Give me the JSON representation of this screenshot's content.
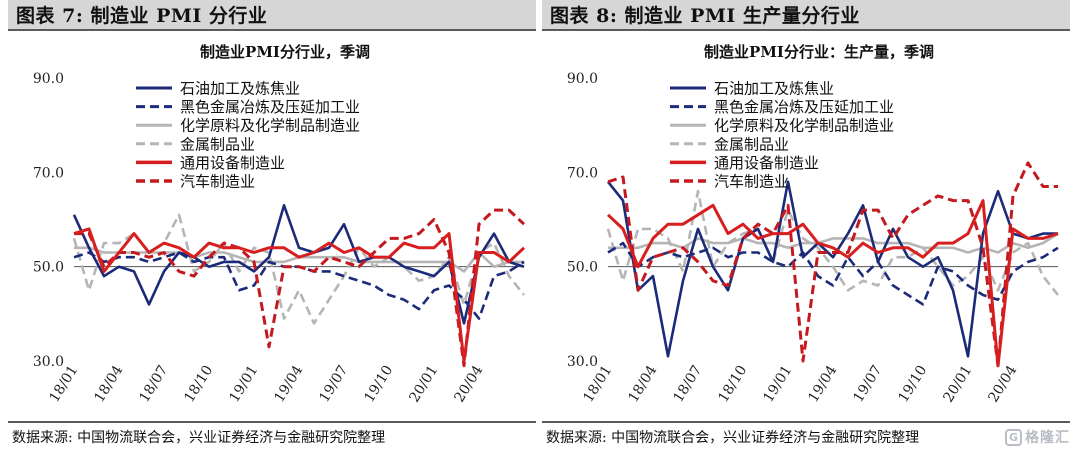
{
  "figures": [
    {
      "header": "图表 7:  制造业 PMI 分行业",
      "source": "数据来源:  中国物流联合会，兴业证券经济与金融研究院整理"
    },
    {
      "header": "图表 8:  制造业 PMI 生产量分行业",
      "source": "数据来源:  中国物流联合会，兴业证券经济与金融研究院整理"
    }
  ],
  "watermark": {
    "icon": "G",
    "text": "格隆汇"
  },
  "chart_data": [
    {
      "type": "line",
      "title": "制造业PMI分行业，季调",
      "ylim": [
        30,
        90
      ],
      "yticks": [
        30,
        50,
        70,
        90
      ],
      "ytick_labels": [
        "30.0",
        "50.0",
        "70.0",
        "90.0"
      ],
      "reference_line": 50,
      "x_count": 31,
      "xticks": [
        {
          "index": 0,
          "label": "18/01"
        },
        {
          "index": 3,
          "label": "18/04"
        },
        {
          "index": 6,
          "label": "18/07"
        },
        {
          "index": 9,
          "label": "18/10"
        },
        {
          "index": 12,
          "label": "19/01"
        },
        {
          "index": 15,
          "label": "19/04"
        },
        {
          "index": 18,
          "label": "19/07"
        },
        {
          "index": 21,
          "label": "19/10"
        },
        {
          "index": 24,
          "label": "20/01"
        },
        {
          "index": 27,
          "label": "20/04"
        }
      ],
      "legend_position": "top-center",
      "grid": false,
      "series": [
        {
          "name": "石油加工及炼焦业",
          "color": "#1b2b7a",
          "dash": "solid",
          "values": [
            61,
            54,
            48,
            50,
            49,
            42,
            49,
            53,
            52,
            50,
            51,
            51,
            49,
            52,
            63,
            54,
            53,
            54,
            59,
            51,
            52,
            52,
            50,
            49,
            48,
            51,
            38,
            52,
            57,
            51,
            50
          ]
        },
        {
          "name": "黑色金属冶炼及压延加工业",
          "color": "#1b2b7a",
          "dash": "dashed",
          "values": [
            52,
            53,
            51,
            52,
            52,
            51,
            52,
            53,
            51,
            52,
            52,
            45,
            46,
            51,
            50,
            50,
            49,
            49,
            48,
            47,
            46,
            44,
            43,
            41,
            45,
            46,
            43,
            39,
            48,
            49,
            51
          ]
        },
        {
          "name": "化学原料及化学制品制造业",
          "color": "#b5b5b5",
          "dash": "solid",
          "values": [
            54,
            54,
            53,
            53,
            53,
            53,
            53,
            53,
            52,
            53,
            53,
            52,
            51,
            51,
            51,
            52,
            52,
            52,
            52,
            51,
            51,
            51,
            51,
            51,
            51,
            51,
            49,
            53,
            50,
            51,
            51
          ]
        },
        {
          "name": "金属制品业",
          "color": "#b5b5b5",
          "dash": "dashed",
          "values": [
            56,
            45,
            55,
            55,
            57,
            53,
            55,
            61,
            49,
            51,
            55,
            49,
            54,
            53,
            39,
            45,
            38,
            43,
            48,
            54,
            50,
            52,
            50,
            47,
            48,
            52,
            42,
            53,
            55,
            48,
            44
          ]
        },
        {
          "name": "通用设备制造业",
          "color": "#d81e1e",
          "dash": "solid",
          "values": [
            57,
            58,
            49,
            53,
            57,
            53,
            55,
            54,
            52,
            55,
            54,
            54,
            53,
            54,
            54,
            52,
            53,
            55,
            53,
            54,
            52,
            52,
            55,
            54,
            54,
            57,
            30,
            53,
            53,
            51,
            54
          ]
        },
        {
          "name": "汽车制造业",
          "color": "#c3191f",
          "dash": "dashed",
          "values": [
            57,
            57,
            50,
            53,
            53,
            52,
            53,
            49,
            48,
            52,
            55,
            54,
            51,
            33,
            50,
            50,
            49,
            52,
            51,
            50,
            53,
            56,
            56,
            57,
            60,
            53,
            29,
            59,
            62,
            62,
            59
          ]
        }
      ]
    },
    {
      "type": "line",
      "title": "制造业PMI分行业：生产量，季调",
      "ylim": [
        30,
        90
      ],
      "yticks": [
        30,
        50,
        70,
        90
      ],
      "ytick_labels": [
        "30.0",
        "50.0",
        "70.0",
        "90.0"
      ],
      "reference_line": 50,
      "x_count": 31,
      "xticks": [
        {
          "index": 0,
          "label": "18/01"
        },
        {
          "index": 3,
          "label": "18/04"
        },
        {
          "index": 6,
          "label": "18/07"
        },
        {
          "index": 9,
          "label": "18/10"
        },
        {
          "index": 12,
          "label": "19/01"
        },
        {
          "index": 15,
          "label": "19/04"
        },
        {
          "index": 18,
          "label": "19/07"
        },
        {
          "index": 21,
          "label": "19/10"
        },
        {
          "index": 24,
          "label": "20/01"
        },
        {
          "index": 27,
          "label": "20/04"
        }
      ],
      "legend_position": "top-center",
      "grid": false,
      "series": [
        {
          "name": "石油加工及炼焦业",
          "color": "#1b2b7a",
          "dash": "solid",
          "values": [
            68,
            64,
            45,
            48,
            31,
            47,
            58,
            50,
            45,
            56,
            58,
            51,
            68,
            52,
            55,
            52,
            57,
            63,
            51,
            58,
            52,
            50,
            52,
            45,
            31,
            57,
            66,
            57,
            56,
            57,
            57
          ]
        },
        {
          "name": "黑色金属冶炼及压延加工业",
          "color": "#1b2b7a",
          "dash": "dashed",
          "values": [
            53,
            55,
            50,
            52,
            53,
            52,
            53,
            54,
            52,
            53,
            53,
            51,
            50,
            53,
            48,
            46,
            52,
            48,
            51,
            46,
            44,
            42,
            50,
            49,
            46,
            44,
            43,
            49,
            51,
            52,
            54
          ]
        },
        {
          "name": "化学原料及化学制品制造业",
          "color": "#b5b5b5",
          "dash": "solid",
          "values": [
            54,
            54,
            54,
            55,
            55,
            54,
            56,
            55,
            55,
            56,
            55,
            55,
            54,
            55,
            55,
            56,
            56,
            56,
            55,
            55,
            55,
            54,
            54,
            54,
            53,
            54,
            53,
            55,
            54,
            55,
            57
          ]
        },
        {
          "name": "金属制品业",
          "color": "#b5b5b5",
          "dash": "dashed",
          "values": [
            58,
            47,
            58,
            58,
            56,
            49,
            66,
            50,
            55,
            57,
            58,
            51,
            62,
            56,
            54,
            50,
            45,
            47,
            46,
            52,
            52,
            54,
            50,
            46,
            48,
            52,
            45,
            53,
            55,
            48,
            44
          ]
        },
        {
          "name": "通用设备制造业",
          "color": "#d81e1e",
          "dash": "solid",
          "values": [
            61,
            58,
            50,
            56,
            59,
            59,
            61,
            63,
            57,
            59,
            56,
            57,
            57,
            59,
            55,
            54,
            52,
            55,
            53,
            54,
            54,
            52,
            55,
            55,
            57,
            64,
            29,
            58,
            56,
            56,
            57
          ]
        },
        {
          "name": "汽车制造业",
          "color": "#c3191f",
          "dash": "dashed",
          "values": [
            68,
            69,
            45,
            52,
            53,
            54,
            51,
            47,
            46,
            56,
            59,
            57,
            63,
            30,
            53,
            53,
            53,
            62,
            62,
            56,
            61,
            63,
            65,
            64,
            64,
            54,
            29,
            65,
            72,
            67,
            67
          ]
        }
      ]
    }
  ]
}
